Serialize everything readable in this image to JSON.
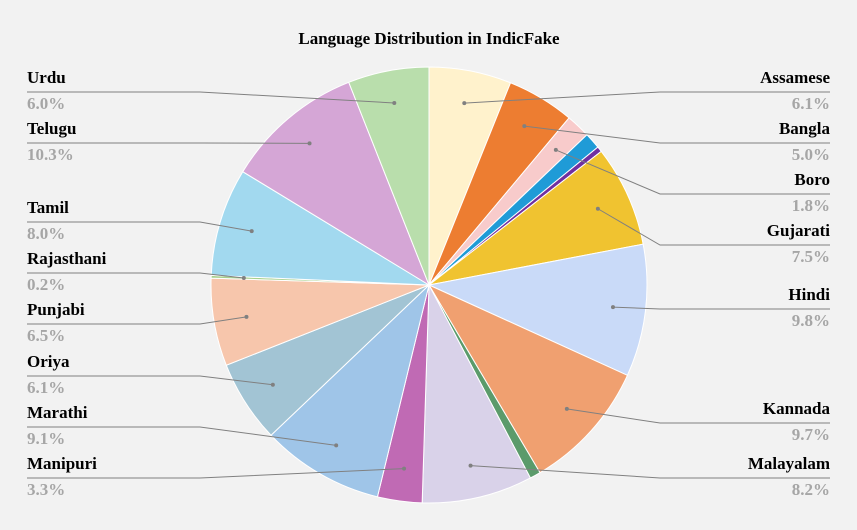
{
  "chart_data": {
    "type": "pie",
    "title": "Language Distribution in IndicFake",
    "categories": [
      "Assamese",
      "Bangla",
      "Boro",
      null,
      null,
      "Gujarati",
      "Hindi",
      "Kannada",
      null,
      "Malayalam",
      "Manipuri",
      "Marathi",
      "Oriya",
      "Punjabi",
      "Rajasthani",
      "Tamil",
      "Telugu",
      "Urdu"
    ],
    "values": [
      6.1,
      5.0,
      1.8,
      1.2,
      0.4,
      7.5,
      9.8,
      9.7,
      0.8,
      8.2,
      3.3,
      9.1,
      6.1,
      6.5,
      0.2,
      8.0,
      10.3,
      6.0
    ],
    "value_labels": [
      "6.1%",
      "5.0%",
      "1.8%",
      null,
      null,
      "7.5%",
      "9.8%",
      "9.7%",
      null,
      "8.2%",
      "3.3%",
      "9.1%",
      "6.1%",
      "6.5%",
      "0.2%",
      "8.0%",
      "10.3%",
      "6.0%"
    ],
    "colors": [
      "#fff2cc",
      "#ed7d31",
      "#f8cbcb",
      "#1f9bd7",
      "#7030a0",
      "#f0c330",
      "#c9daf8",
      "#f0a070",
      "#5b9b6b",
      "#d9d2e9",
      "#c06ab4",
      "#9fc5e8",
      "#a2c4d4",
      "#f7c6ac",
      "#a8d08d",
      "#a2d9ef",
      "#d5a6d6",
      "#b9deac"
    ]
  }
}
